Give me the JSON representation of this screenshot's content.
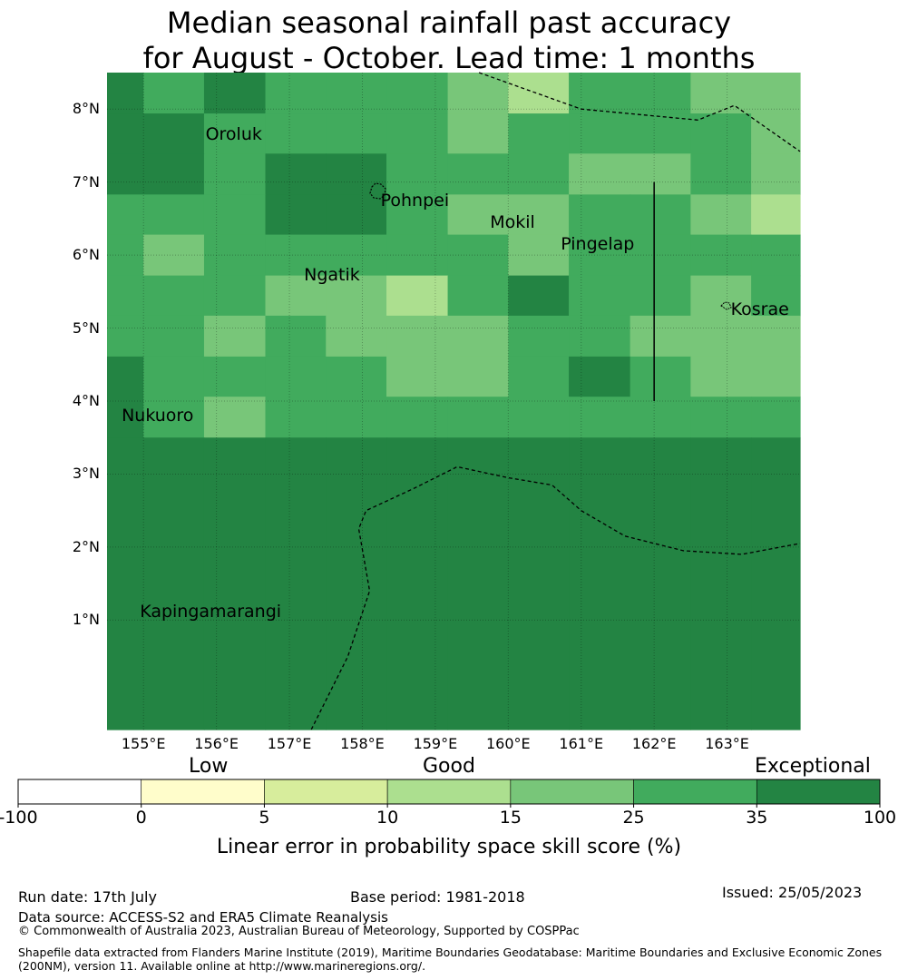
{
  "title": {
    "line1": "Median seasonal rainfall past accuracy",
    "line2": "for August - October. Lead time: 1 months"
  },
  "map": {
    "lat_labels": [
      "8°N",
      "7°N",
      "6°N",
      "5°N",
      "4°N",
      "3°N",
      "2°N",
      "1°N"
    ],
    "lon_labels": [
      "155°E",
      "156°E",
      "157°E",
      "158°E",
      "159°E",
      "160°E",
      "161°E",
      "162°E",
      "163°E"
    ],
    "extent": {
      "lon_min": 154.5,
      "lon_max": 164.0,
      "lat_min": -0.5,
      "lat_max": 8.5
    },
    "grid_lat_edges": [
      8.5,
      7.94,
      7.39,
      6.83,
      6.28,
      5.72,
      5.17,
      4.61,
      4.06,
      3.5,
      -0.5
    ],
    "grid_lon_edges": [
      154.5,
      155.0,
      155.83,
      156.67,
      157.5,
      158.33,
      159.17,
      160.0,
      160.83,
      161.67,
      162.5,
      163.33,
      164.0
    ],
    "cells": [
      [
        6,
        5,
        6,
        5,
        5,
        5,
        4,
        3,
        5,
        5,
        4,
        4
      ],
      [
        6,
        6,
        5,
        5,
        5,
        5,
        4,
        5,
        5,
        5,
        5,
        4
      ],
      [
        6,
        6,
        5,
        6,
        6,
        5,
        5,
        5,
        4,
        4,
        5,
        4
      ],
      [
        5,
        5,
        5,
        6,
        6,
        5,
        4,
        4,
        5,
        5,
        4,
        3
      ],
      [
        5,
        4,
        5,
        5,
        5,
        5,
        5,
        4,
        5,
        5,
        5,
        5
      ],
      [
        5,
        5,
        5,
        4,
        4,
        3,
        5,
        6,
        5,
        5,
        4,
        5
      ],
      [
        5,
        5,
        4,
        5,
        4,
        4,
        4,
        5,
        5,
        4,
        4,
        4
      ],
      [
        6,
        5,
        5,
        5,
        5,
        4,
        4,
        5,
        6,
        5,
        4,
        4
      ],
      [
        6,
        5,
        4,
        5,
        5,
        5,
        5,
        5,
        5,
        5,
        5,
        5
      ],
      [
        6,
        6,
        6,
        6,
        6,
        6,
        6,
        6,
        6,
        6,
        6,
        6
      ]
    ],
    "places": [
      {
        "name": "Oroluk",
        "lon": 155.85,
        "lat": 7.65
      },
      {
        "name": "Pohnpei",
        "lon": 158.25,
        "lat": 6.75
      },
      {
        "name": "Mokil",
        "lon": 159.75,
        "lat": 6.45
      },
      {
        "name": "Pingelap",
        "lon": 160.72,
        "lat": 6.15
      },
      {
        "name": "Ngatik",
        "lon": 157.2,
        "lat": 5.73
      },
      {
        "name": "Kosrae",
        "lon": 163.05,
        "lat": 5.25
      },
      {
        "name": "Nukuoro",
        "lon": 154.7,
        "lat": 3.8
      },
      {
        "name": "Kapingamarangi",
        "lon": 154.95,
        "lat": 1.12
      }
    ],
    "boundary_lines": [
      [
        [
          159.6,
          8.5
        ],
        [
          161.0,
          8.0
        ],
        [
          162.6,
          7.85
        ],
        [
          163.1,
          8.05
        ],
        [
          164.0,
          7.42
        ]
      ],
      [
        [
          157.3,
          -0.5
        ],
        [
          157.8,
          0.5
        ],
        [
          158.1,
          1.4
        ],
        [
          157.95,
          2.25
        ],
        [
          158.05,
          2.5
        ],
        [
          158.7,
          2.8
        ],
        [
          159.3,
          3.1
        ],
        [
          160.0,
          2.95
        ],
        [
          160.6,
          2.85
        ],
        [
          161.0,
          2.5
        ],
        [
          161.6,
          2.15
        ],
        [
          162.4,
          1.95
        ],
        [
          163.2,
          1.9
        ],
        [
          164.0,
          2.05
        ]
      ]
    ],
    "vertical_line": {
      "lon": 162.0,
      "lat_from": 7.0,
      "lat_to": 4.0
    }
  },
  "colorbar": {
    "categories": [
      "Low",
      "Good",
      "Exceptional"
    ],
    "ticks": [
      "-100",
      "0",
      "5",
      "10",
      "15",
      "25",
      "35",
      "100"
    ],
    "colors": [
      "#ffffff",
      "#fffdcb",
      "#d7ed9c",
      "#acdf8f",
      "#78c679",
      "#41ab5d",
      "#238443"
    ],
    "label": "Linear error in probability space skill score (%)"
  },
  "footer": {
    "run_date": "Run date: 17th July",
    "base_period": "Base period: 1981-2018",
    "issued": "Issued: 25/05/2023",
    "data_source": "Data source: ACCESS-S2 and ERA5 Climate Reanalysis",
    "copyright": "© Commonwealth of Australia 2023, Australian Bureau of Meteorology, Supported by COSPPac",
    "shapefile_line1": "Shapefile data extracted from Flanders Marine Institute (2019), Maritime Boundaries Geodatabase: Maritime Boundaries and Exclusive Economic Zones",
    "shapefile_line2": "(200NM), version 11. Available online at http://www.marineregions.org/."
  }
}
